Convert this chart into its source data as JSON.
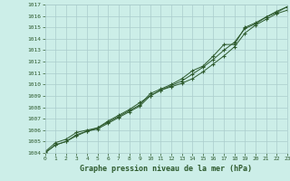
{
  "title": "Graphe pression niveau de la mer (hPa)",
  "bg_color": "#cceee8",
  "grid_color": "#aacccc",
  "line_color": "#2d5a2d",
  "x_min": 0,
  "x_max": 23,
  "y_min": 1004,
  "y_max": 1017,
  "series": [
    {
      "x": [
        0,
        1,
        2,
        3,
        4,
        5,
        6,
        7,
        8,
        9,
        10,
        11,
        12,
        13,
        14,
        15,
        16,
        17,
        18,
        19,
        20,
        21,
        22,
        23
      ],
      "y": [
        1004.1,
        1004.9,
        1005.2,
        1005.8,
        1006.0,
        1006.2,
        1006.8,
        1007.3,
        1007.8,
        1008.4,
        1009.0,
        1009.5,
        1009.8,
        1010.1,
        1010.5,
        1011.1,
        1011.8,
        1012.5,
        1013.3,
        1014.5,
        1015.2,
        1015.7,
        1016.2,
        1016.5
      ]
    },
    {
      "x": [
        0,
        1,
        2,
        3,
        4,
        5,
        6,
        7,
        8,
        9,
        10,
        11,
        12,
        13,
        14,
        15,
        16,
        17,
        18,
        19,
        20,
        21,
        22,
        23
      ],
      "y": [
        1004.0,
        1004.7,
        1005.0,
        1005.6,
        1005.9,
        1006.2,
        1006.7,
        1007.2,
        1007.7,
        1008.2,
        1009.2,
        1009.6,
        1010.0,
        1010.5,
        1011.2,
        1011.6,
        1012.5,
        1013.5,
        1013.5,
        1015.0,
        1015.4,
        1015.9,
        1016.4,
        1016.8
      ]
    },
    {
      "x": [
        0,
        1,
        2,
        3,
        4,
        5,
        6,
        7,
        8,
        9,
        10,
        11,
        12,
        13,
        14,
        15,
        16,
        17,
        18,
        19,
        20,
        21,
        22,
        23
      ],
      "y": [
        1004.0,
        1004.7,
        1005.0,
        1005.5,
        1005.9,
        1006.1,
        1006.6,
        1007.1,
        1007.6,
        1008.1,
        1009.0,
        1009.5,
        1009.9,
        1010.3,
        1010.9,
        1011.5,
        1012.2,
        1013.0,
        1013.7,
        1014.9,
        1015.3,
        1015.9,
        1016.3,
        1016.8
      ]
    }
  ],
  "yticks": [
    1004,
    1005,
    1006,
    1007,
    1008,
    1009,
    1010,
    1011,
    1012,
    1013,
    1014,
    1015,
    1016,
    1017
  ],
  "xticks": [
    0,
    1,
    2,
    3,
    4,
    5,
    6,
    7,
    8,
    9,
    10,
    11,
    12,
    13,
    14,
    15,
    16,
    17,
    18,
    19,
    20,
    21,
    22,
    23
  ]
}
